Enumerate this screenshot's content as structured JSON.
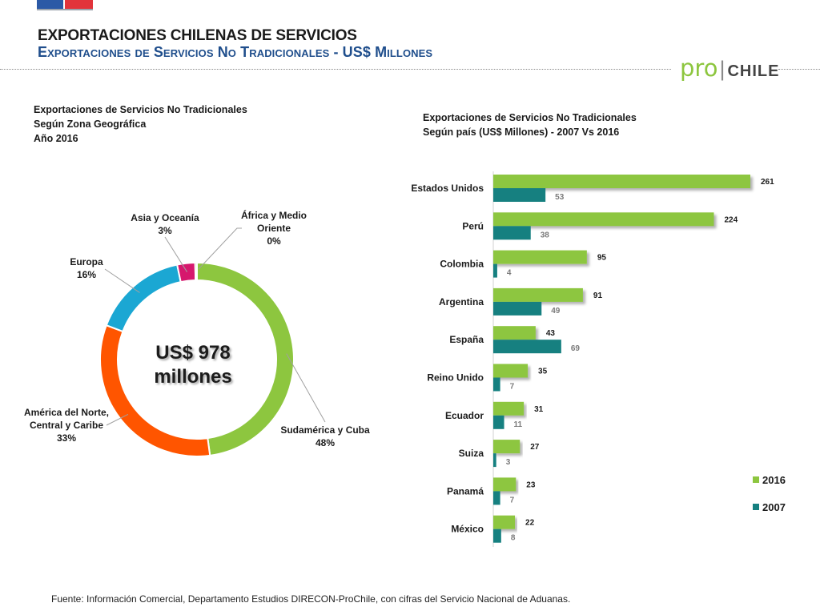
{
  "header": {
    "title": "EXPORTACIONES CHILENAS DE SERVICIOS",
    "subtitle": "Exportaciones de Servicios No Tradicionales - US$ Millones"
  },
  "logo": {
    "pro": "pro",
    "chile": "CHILE"
  },
  "colors": {
    "green": "#8dc63f",
    "teal": "#168080",
    "orange": "#ff5500",
    "cyan": "#1ba7d3",
    "magenta": "#d6186d",
    "navy": "#1f4e8c"
  },
  "left_chart": {
    "title_lines": [
      "Exportaciones de Servicios No Tradicionales",
      "Según Zona Geográfica",
      "Año 2016"
    ]
  },
  "right_chart": {
    "title_lines": [
      "Exportaciones de Servicios No Tradicionales",
      "Según país (US$ Millones) - 2007 Vs 2016"
    ]
  },
  "chart_data": [
    {
      "type": "pie",
      "subtype": "donut",
      "center_label_lines": [
        "US$ 978",
        "millones"
      ],
      "slices": [
        {
          "label": "Sudamérica y Cuba",
          "percent_label": "48%",
          "value": 48,
          "color": "#8dc63f"
        },
        {
          "label": "América del Norte, Central y Caribe",
          "percent_label": "33%",
          "value": 33,
          "color": "#ff5500"
        },
        {
          "label": "Europa",
          "percent_label": "16%",
          "value": 16,
          "color": "#1ba7d3"
        },
        {
          "label": "Asia y Oceanía",
          "percent_label": "3%",
          "value": 3,
          "color": "#d6186d"
        },
        {
          "label": "África y Medio Oriente",
          "percent_label": "0%",
          "value": 0.3,
          "color": "#8dc63f"
        }
      ]
    },
    {
      "type": "bar",
      "orientation": "horizontal",
      "categories": [
        "Estados Unidos",
        "Perú",
        "Colombia",
        "Argentina",
        "España",
        "Reino Unido",
        "Ecuador",
        "Suiza",
        "Panamá",
        "México"
      ],
      "series": [
        {
          "name": "2016",
          "color": "#8dc63f",
          "values": [
            261,
            224,
            95,
            91,
            43,
            35,
            31,
            27,
            23,
            22
          ]
        },
        {
          "name": "2007",
          "color": "#168080",
          "values": [
            53,
            38,
            4,
            49,
            69,
            7,
            11,
            3,
            7,
            8
          ]
        }
      ],
      "xlim": [
        0,
        261
      ],
      "legend": "bottom-right",
      "grid": false
    }
  ],
  "footnote": "Fuente: Información Comercial, Departamento Estudios  DIRECON-ProChile, con cifras del Servicio Nacional de Aduanas."
}
